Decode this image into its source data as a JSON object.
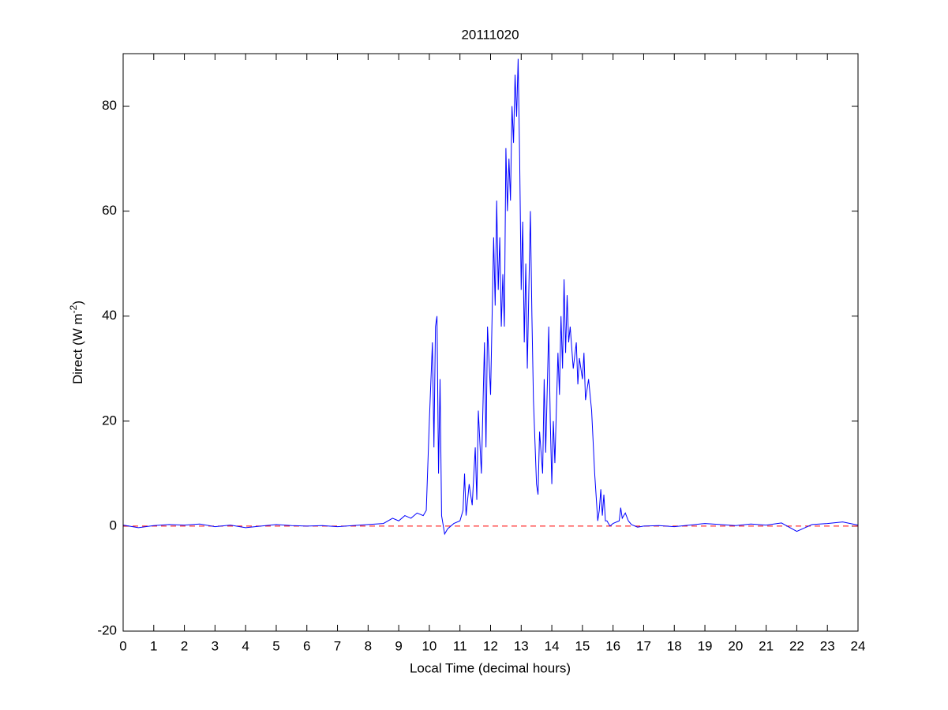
{
  "chart_data": {
    "type": "line",
    "title": "20111020",
    "xlabel": "Local Time (decimal hours)",
    "ylabel_parts": [
      "Direct (W m",
      "-2",
      ")"
    ],
    "xlim": [
      0,
      24
    ],
    "xticks": [
      0,
      1,
      2,
      3,
      4,
      5,
      6,
      7,
      8,
      9,
      10,
      11,
      12,
      13,
      14,
      15,
      16,
      17,
      18,
      19,
      20,
      21,
      22,
      23,
      24
    ],
    "ylim": [
      -20,
      90
    ],
    "yticks": [
      -20,
      0,
      20,
      40,
      60,
      80
    ],
    "grid": false,
    "hline": {
      "y": 0,
      "color": "#ff0000",
      "dash": true
    },
    "x": [
      0,
      0.5,
      1,
      1.5,
      2,
      2.5,
      3,
      3.5,
      4,
      4.5,
      5,
      5.5,
      6,
      6.5,
      7,
      7.5,
      8,
      8.5,
      8.8,
      9,
      9.2,
      9.4,
      9.6,
      9.8,
      9.9,
      10,
      10.1,
      10.15,
      10.2,
      10.25,
      10.3,
      10.35,
      10.4,
      10.5,
      10.6,
      10.8,
      11,
      11.1,
      11.15,
      11.2,
      11.3,
      11.4,
      11.5,
      11.55,
      11.6,
      11.7,
      11.8,
      11.85,
      11.9,
      12,
      12.1,
      12.15,
      12.2,
      12.25,
      12.3,
      12.35,
      12.4,
      12.45,
      12.5,
      12.55,
      12.6,
      12.65,
      12.7,
      12.75,
      12.8,
      12.85,
      12.9,
      12.95,
      13,
      13.05,
      13.1,
      13.15,
      13.2,
      13.3,
      13.35,
      13.4,
      13.5,
      13.55,
      13.6,
      13.7,
      13.75,
      13.8,
      13.9,
      13.95,
      14,
      14.05,
      14.1,
      14.2,
      14.25,
      14.3,
      14.35,
      14.4,
      14.45,
      14.5,
      14.55,
      14.6,
      14.7,
      14.8,
      14.85,
      14.9,
      15,
      15.05,
      15.1,
      15.2,
      15.3,
      15.4,
      15.5,
      15.55,
      15.6,
      15.65,
      15.7,
      15.75,
      15.8,
      15.9,
      16,
      16.2,
      16.25,
      16.3,
      16.4,
      16.5,
      16.6,
      16.8,
      17,
      17.5,
      18,
      18.5,
      19,
      19.5,
      20,
      20.5,
      21,
      21.5,
      22,
      22.5,
      23,
      23.5,
      24
    ],
    "series": [
      {
        "name": "Direct",
        "color": "#0000ff",
        "values": [
          0.2,
          -0.3,
          0.1,
          0.3,
          0.2,
          0.4,
          -0.1,
          0.2,
          -0.3,
          0,
          0.3,
          0.1,
          0,
          0.1,
          -0.1,
          0.1,
          0.3,
          0.5,
          1.5,
          1,
          2,
          1.5,
          2.5,
          2,
          3,
          20,
          35,
          15,
          38,
          40,
          10,
          28,
          2,
          -1.5,
          -0.5,
          0.5,
          1,
          3,
          10,
          2,
          8,
          4,
          15,
          5,
          22,
          10,
          35,
          15,
          38,
          25,
          55,
          42,
          62,
          45,
          55,
          38,
          48,
          38,
          72,
          60,
          70,
          62,
          80,
          73,
          86,
          78,
          89,
          70,
          45,
          58,
          35,
          50,
          30,
          60,
          40,
          24,
          8,
          6,
          18,
          10,
          28,
          14,
          38,
          20,
          8,
          20,
          12,
          33,
          25,
          40,
          30,
          47,
          33,
          44,
          35,
          38,
          30,
          35,
          27,
          32,
          28,
          33,
          24,
          28,
          22,
          10,
          1,
          3,
          7,
          2,
          6,
          1,
          1,
          0,
          0.5,
          1,
          3.5,
          1.5,
          2.5,
          1,
          0.3,
          -0.2,
          0,
          0.1,
          -0.1,
          0.2,
          0.5,
          0.3,
          0.1,
          0.4,
          0.2,
          0.6,
          -1,
          0.3,
          0.5,
          0.8,
          0.2
        ]
      }
    ]
  }
}
